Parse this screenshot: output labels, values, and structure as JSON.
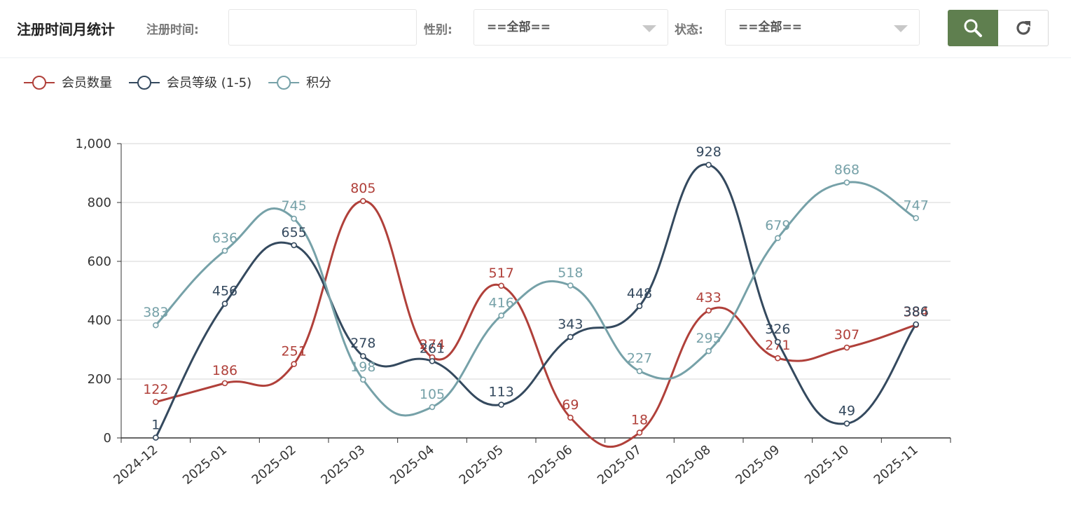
{
  "toolbar": {
    "title": "注册时间月统计",
    "reg_time_label": "注册时间:",
    "reg_time_value": "",
    "gender_label": "性别:",
    "gender_value": "==全部==",
    "status_label": "状态:",
    "status_value": "==全部==",
    "search_icon": "search-icon",
    "refresh_icon": "refresh-icon",
    "accent_color": "#5f7f4f"
  },
  "chart_data": {
    "type": "line",
    "title": "",
    "xlabel": "",
    "ylabel": "",
    "ylim": [
      0,
      1000
    ],
    "yticks": [
      0,
      200,
      400,
      600,
      800,
      1000
    ],
    "ytick_labels": [
      "0",
      "200",
      "400",
      "600",
      "800",
      "1,000"
    ],
    "categories": [
      "2024-12",
      "2025-01",
      "2025-02",
      "2025-03",
      "2025-04",
      "2025-05",
      "2025-06",
      "2025-07",
      "2025-08",
      "2025-09",
      "2025-10",
      "2025-11"
    ],
    "grid": true,
    "legend_position": "top-left",
    "series": [
      {
        "name": "会员数量",
        "color": "#b0403a",
        "values": [
          122,
          186,
          251,
          805,
          274,
          517,
          69,
          18,
          433,
          271,
          307,
          384
        ]
      },
      {
        "name": "会员等级 (1-5)",
        "color": "#34495e",
        "values": [
          1,
          456,
          655,
          278,
          261,
          113,
          343,
          448,
          928,
          326,
          49,
          386
        ]
      },
      {
        "name": "积分",
        "color": "#76a1a8",
        "values": [
          383,
          636,
          745,
          198,
          105,
          416,
          518,
          227,
          295,
          679,
          868,
          747
        ]
      }
    ]
  }
}
